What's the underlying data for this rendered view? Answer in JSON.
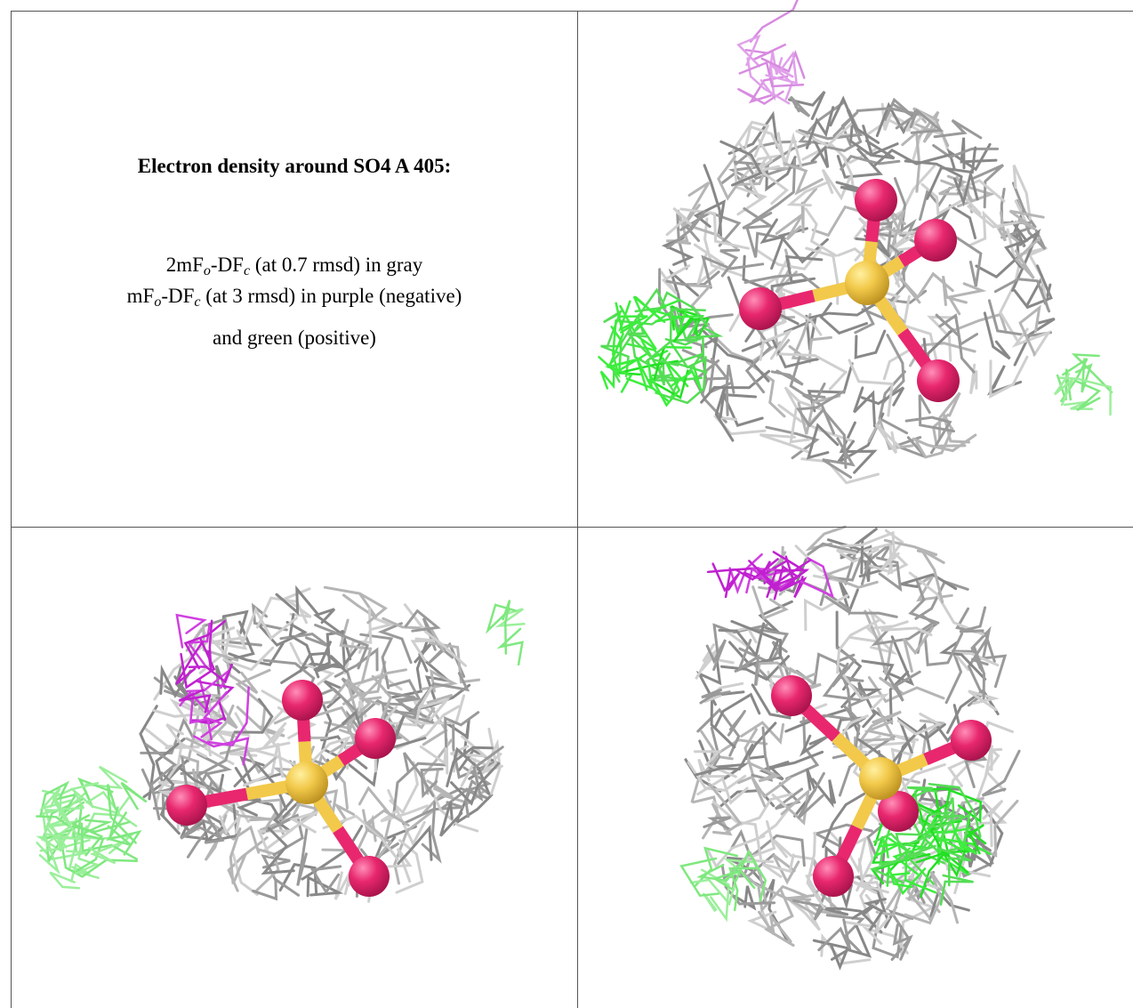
{
  "title": "Electron density around SO4 A 405:",
  "lines": [
    [
      "2mF",
      "o",
      "-DF",
      "c",
      " (at 0.7 rmsd) in gray"
    ],
    [
      "mF",
      "o",
      "-DF",
      "c",
      " (at 3 rmsd) in purple (negative)"
    ],
    [
      "and green (positive)"
    ]
  ]
}
